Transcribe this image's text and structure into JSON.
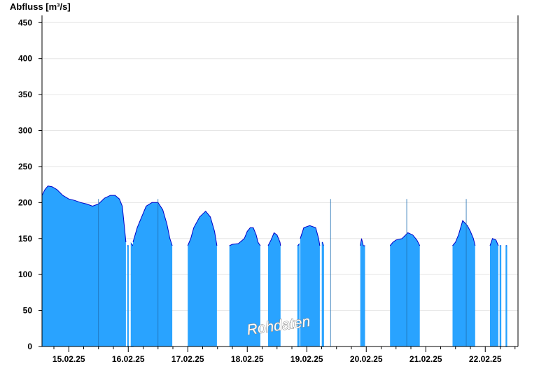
{
  "chart_data": {
    "type": "area",
    "title": "",
    "ylabel": "Abfluss [m³/s]",
    "xlabel": "",
    "ylim": [
      0,
      460
    ],
    "yticks": [
      0,
      50,
      100,
      150,
      200,
      250,
      300,
      350,
      400,
      450
    ],
    "xlim_days": [
      14.55,
      22.55
    ],
    "xtick_labels": [
      "15.02.25",
      "16.02.25",
      "17.02.25",
      "18.02.25",
      "19.02.25",
      "20.02.25",
      "21.02.25",
      "22.02.25"
    ],
    "grid": "horizontal",
    "watermark": "Rohdaten",
    "colors": {
      "fill": "#29a3ff",
      "line": "#0000c8",
      "grid": "#e6e6e6"
    },
    "series": [
      {
        "segments": [
          {
            "points": [
              [
                14.55,
                210
              ],
              [
                14.6,
                218
              ],
              [
                14.65,
                223
              ],
              [
                14.72,
                222
              ],
              [
                14.8,
                218
              ],
              [
                14.9,
                210
              ],
              [
                15.0,
                205
              ],
              [
                15.1,
                203
              ],
              [
                15.2,
                200
              ],
              [
                15.3,
                198
              ],
              [
                15.4,
                195
              ],
              [
                15.5,
                198
              ],
              [
                15.6,
                206
              ],
              [
                15.7,
                210
              ],
              [
                15.78,
                210
              ],
              [
                15.85,
                205
              ],
              [
                15.9,
                195
              ],
              [
                15.93,
                170
              ],
              [
                15.96,
                145
              ]
            ]
          },
          {
            "points": [
              [
                15.99,
                140
              ],
              [
                16.0,
                140
              ]
            ]
          },
          {
            "points": [
              [
                16.05,
                143
              ],
              [
                16.08,
                140
              ]
            ]
          },
          {
            "points": [
              [
                16.08,
                145
              ],
              [
                16.15,
                165
              ],
              [
                16.2,
                175
              ],
              [
                16.3,
                195
              ],
              [
                16.4,
                200
              ],
              [
                16.5,
                200
              ],
              [
                16.58,
                190
              ],
              [
                16.65,
                170
              ],
              [
                16.7,
                150
              ],
              [
                16.74,
                140
              ]
            ]
          },
          {
            "points": [
              [
                17.0,
                140
              ],
              [
                17.05,
                150
              ],
              [
                17.1,
                165
              ],
              [
                17.2,
                180
              ],
              [
                17.3,
                188
              ],
              [
                17.38,
                180
              ],
              [
                17.45,
                160
              ],
              [
                17.49,
                140
              ]
            ]
          },
          {
            "points": [
              [
                17.7,
                140
              ],
              [
                17.75,
                142
              ],
              [
                17.85,
                143
              ],
              [
                17.95,
                150
              ],
              [
                18.0,
                160
              ],
              [
                18.05,
                165
              ],
              [
                18.1,
                165
              ],
              [
                18.15,
                155
              ],
              [
                18.18,
                145
              ],
              [
                18.22,
                140
              ]
            ]
          },
          {
            "points": [
              [
                18.35,
                140
              ],
              [
                18.4,
                148
              ],
              [
                18.45,
                158
              ],
              [
                18.5,
                155
              ],
              [
                18.55,
                145
              ],
              [
                18.56,
                140
              ]
            ]
          },
          {
            "points": [
              [
                18.85,
                140
              ],
              [
                18.87,
                142
              ]
            ]
          },
          {
            "points": [
              [
                18.89,
                150
              ],
              [
                18.95,
                165
              ],
              [
                19.05,
                168
              ],
              [
                19.15,
                165
              ],
              [
                19.2,
                150
              ],
              [
                19.22,
                140
              ]
            ]
          },
          {
            "points": [
              [
                19.26,
                145
              ],
              [
                19.28,
                140
              ]
            ]
          },
          {
            "points": [
              [
                19.9,
                140
              ],
              [
                19.92,
                150
              ],
              [
                19.95,
                140
              ],
              [
                19.98,
                140
              ]
            ]
          },
          {
            "points": [
              [
                20.4,
                140
              ],
              [
                20.45,
                145
              ],
              [
                20.5,
                148
              ],
              [
                20.6,
                150
              ],
              [
                20.7,
                158
              ],
              [
                20.78,
                155
              ],
              [
                20.85,
                148
              ],
              [
                20.9,
                140
              ]
            ]
          },
          {
            "points": [
              [
                21.45,
                140
              ],
              [
                21.5,
                145
              ],
              [
                21.55,
                155
              ],
              [
                21.62,
                175
              ],
              [
                21.7,
                168
              ],
              [
                21.75,
                160
              ],
              [
                21.8,
                150
              ],
              [
                21.83,
                140
              ]
            ]
          },
          {
            "points": [
              [
                22.08,
                140
              ],
              [
                22.12,
                150
              ],
              [
                22.18,
                148
              ],
              [
                22.22,
                140
              ]
            ]
          },
          {
            "points": [
              [
                22.25,
                140
              ],
              [
                22.26,
                140
              ]
            ]
          },
          {
            "points": [
              [
                22.35,
                140
              ],
              [
                22.36,
                140
              ]
            ]
          }
        ]
      }
    ]
  }
}
